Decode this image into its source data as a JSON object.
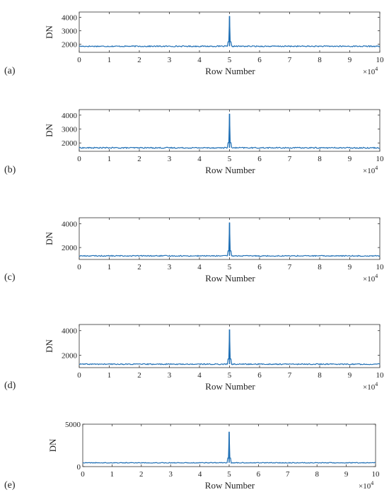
{
  "chart_data": [
    {
      "type": "line",
      "panel_label": "(a)",
      "xlabel": "Row Number",
      "ylabel": "DN",
      "x_multiplier": "×10",
      "x_multiplier_exp": "4",
      "xlim": [
        0,
        10
      ],
      "ylim": [
        1400,
        4400
      ],
      "xticks": [
        "0",
        "1",
        "2",
        "3",
        "4",
        "5",
        "6",
        "7",
        "8",
        "9",
        "10"
      ],
      "yticks": [
        {
          "v": 2000,
          "label": "2000"
        },
        {
          "v": 3000,
          "label": "3000"
        },
        {
          "v": 4000,
          "label": "4000"
        }
      ],
      "series": [
        {
          "baseline": 1850,
          "noise": 40,
          "spike_x": 5.0,
          "spike_y": 4100
        }
      ],
      "grid": false,
      "color": "#1f6fb5"
    },
    {
      "type": "line",
      "panel_label": "(b)",
      "xlabel": "Row Number",
      "ylabel": "DN",
      "x_multiplier": "×10",
      "x_multiplier_exp": "4",
      "xlim": [
        0,
        10
      ],
      "ylim": [
        1400,
        4400
      ],
      "xticks": [
        "0",
        "1",
        "2",
        "3",
        "4",
        "5",
        "6",
        "7",
        "8",
        "9",
        "10"
      ],
      "yticks": [
        {
          "v": 2000,
          "label": "2000"
        },
        {
          "v": 3000,
          "label": "3000"
        },
        {
          "v": 4000,
          "label": "4000"
        }
      ],
      "series": [
        {
          "baseline": 1650,
          "noise": 40,
          "spike_x": 5.0,
          "spike_y": 4100
        }
      ],
      "grid": false,
      "color": "#1f6fb5"
    },
    {
      "type": "line",
      "panel_label": "(c)",
      "xlabel": "Row Number",
      "ylabel": "DN",
      "x_multiplier": "×10",
      "x_multiplier_exp": "4",
      "xlim": [
        0,
        10
      ],
      "ylim": [
        1000,
        4500
      ],
      "xticks": [
        "0",
        "1",
        "2",
        "3",
        "4",
        "5",
        "6",
        "7",
        "8",
        "9",
        "10"
      ],
      "yticks": [
        {
          "v": 2000,
          "label": "2000"
        },
        {
          "v": 4000,
          "label": "4000"
        }
      ],
      "series": [
        {
          "baseline": 1300,
          "noise": 40,
          "spike_x": 5.0,
          "spike_y": 4100
        }
      ],
      "grid": false,
      "color": "#1f6fb5"
    },
    {
      "type": "line",
      "panel_label": "(d)",
      "xlabel": "Row Number",
      "ylabel": "DN",
      "x_multiplier": "×10",
      "x_multiplier_exp": "4",
      "xlim": [
        0,
        10
      ],
      "ylim": [
        1000,
        4500
      ],
      "xticks": [
        "0",
        "1",
        "2",
        "3",
        "4",
        "5",
        "6",
        "7",
        "8",
        "9",
        "10"
      ],
      "yticks": [
        {
          "v": 2000,
          "label": "2000"
        },
        {
          "v": 4000,
          "label": "4000"
        }
      ],
      "series": [
        {
          "baseline": 1280,
          "noise": 40,
          "spike_x": 5.0,
          "spike_y": 4100
        }
      ],
      "grid": false,
      "color": "#1f6fb5"
    },
    {
      "type": "line",
      "panel_label": "(e)",
      "xlabel": "Row Number",
      "ylabel": "DN",
      "x_multiplier": "×10",
      "x_multiplier_exp": "4",
      "xlim": [
        0,
        10
      ],
      "ylim": [
        0,
        5000
      ],
      "xticks": [
        "0",
        "1",
        "2",
        "3",
        "4",
        "5",
        "6",
        "7",
        "8",
        "9",
        "10"
      ],
      "yticks": [
        {
          "v": 0,
          "label": "0"
        },
        {
          "v": 5000,
          "label": "5000"
        }
      ],
      "series": [
        {
          "baseline": 450,
          "noise": 40,
          "spike_x": 5.0,
          "spike_y": 4100
        }
      ],
      "grid": false,
      "color": "#1f6fb5"
    }
  ]
}
